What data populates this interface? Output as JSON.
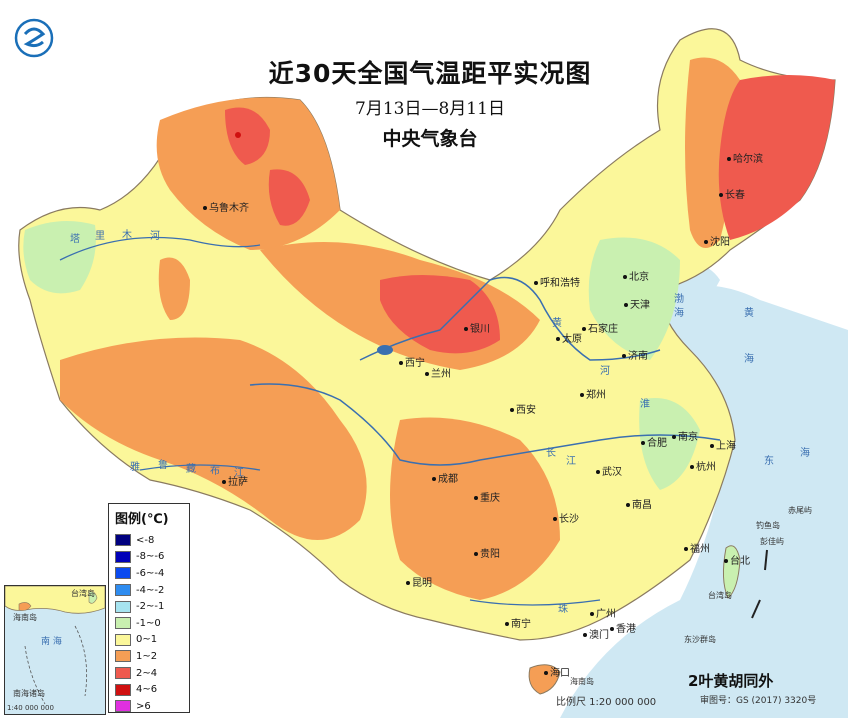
{
  "title": "近30天全国气温距平实况图",
  "date_range": "7月13日—8月11日",
  "agency": "中央气象台",
  "legend": {
    "title": "图例(℃)",
    "items": [
      {
        "label": "<-8",
        "color": "#000080"
      },
      {
        "label": "-8~-6",
        "color": "#0000b8"
      },
      {
        "label": "-6~-4",
        "color": "#0a4af0"
      },
      {
        "label": "-4~-2",
        "color": "#2e8cf0"
      },
      {
        "label": "-2~-1",
        "color": "#a6e4f0"
      },
      {
        "label": "-1~0",
        "color": "#c9f0b0"
      },
      {
        "label": "0~1",
        "color": "#fbf79a"
      },
      {
        "label": "1~2",
        "color": "#f59e55"
      },
      {
        "label": "2~4",
        "color": "#ef5a4e"
      },
      {
        "label": "4~6",
        "color": "#d01010"
      },
      {
        "label": ">6",
        "color": "#e030e0"
      }
    ]
  },
  "cities": [
    {
      "name": "乌鲁木齐"
    },
    {
      "name": "哈尔滨"
    },
    {
      "name": "长春"
    },
    {
      "name": "沈阳"
    },
    {
      "name": "呼和浩特"
    },
    {
      "name": "北京"
    },
    {
      "name": "天津"
    },
    {
      "name": "石家庄"
    },
    {
      "name": "太原"
    },
    {
      "name": "济南"
    },
    {
      "name": "银川"
    },
    {
      "name": "西宁"
    },
    {
      "name": "兰州"
    },
    {
      "name": "郑州"
    },
    {
      "name": "西安"
    },
    {
      "name": "南京"
    },
    {
      "name": "上海"
    },
    {
      "name": "合肥"
    },
    {
      "name": "杭州"
    },
    {
      "name": "成都"
    },
    {
      "name": "重庆"
    },
    {
      "name": "武汉"
    },
    {
      "name": "拉萨"
    },
    {
      "name": "长沙"
    },
    {
      "name": "南昌"
    },
    {
      "name": "贵阳"
    },
    {
      "name": "福州"
    },
    {
      "name": "台北"
    },
    {
      "name": "昆明"
    },
    {
      "name": "南宁"
    },
    {
      "name": "广州"
    },
    {
      "name": "澳门"
    },
    {
      "name": "香港"
    },
    {
      "name": "海口"
    }
  ],
  "rivers": [
    {
      "name": "塔"
    },
    {
      "name": "里"
    },
    {
      "name": "木"
    },
    {
      "name": "河"
    },
    {
      "name": "河"
    },
    {
      "name": "黄"
    },
    {
      "name": "长"
    },
    {
      "name": "江"
    },
    {
      "name": "淮"
    },
    {
      "name": "珠"
    },
    {
      "name": "雅"
    },
    {
      "name": "鲁"
    },
    {
      "name": "藏"
    },
    {
      "name": "布"
    },
    {
      "name": "江"
    }
  ],
  "seas": [
    {
      "name": "渤"
    },
    {
      "name": "海"
    },
    {
      "name": "黄"
    },
    {
      "name": "海"
    },
    {
      "name": "东"
    },
    {
      "name": "海"
    }
  ],
  "islands": [
    {
      "name": "赤尾屿"
    },
    {
      "name": "钓鱼岛"
    },
    {
      "name": "彭佳屿"
    },
    {
      "name": "台湾岛"
    },
    {
      "name": "东沙群岛"
    },
    {
      "name": "海南岛"
    }
  ],
  "inset": {
    "sea": "南 海",
    "island_labels": [
      "海南岛",
      "台湾岛",
      "南海诸岛"
    ],
    "scale": "1:40 000 000"
  },
  "scale": "比例尺 1:20 000 000",
  "approval": "审图号：GS (2017) 3320号",
  "watermark": "2叶黄胡同外"
}
